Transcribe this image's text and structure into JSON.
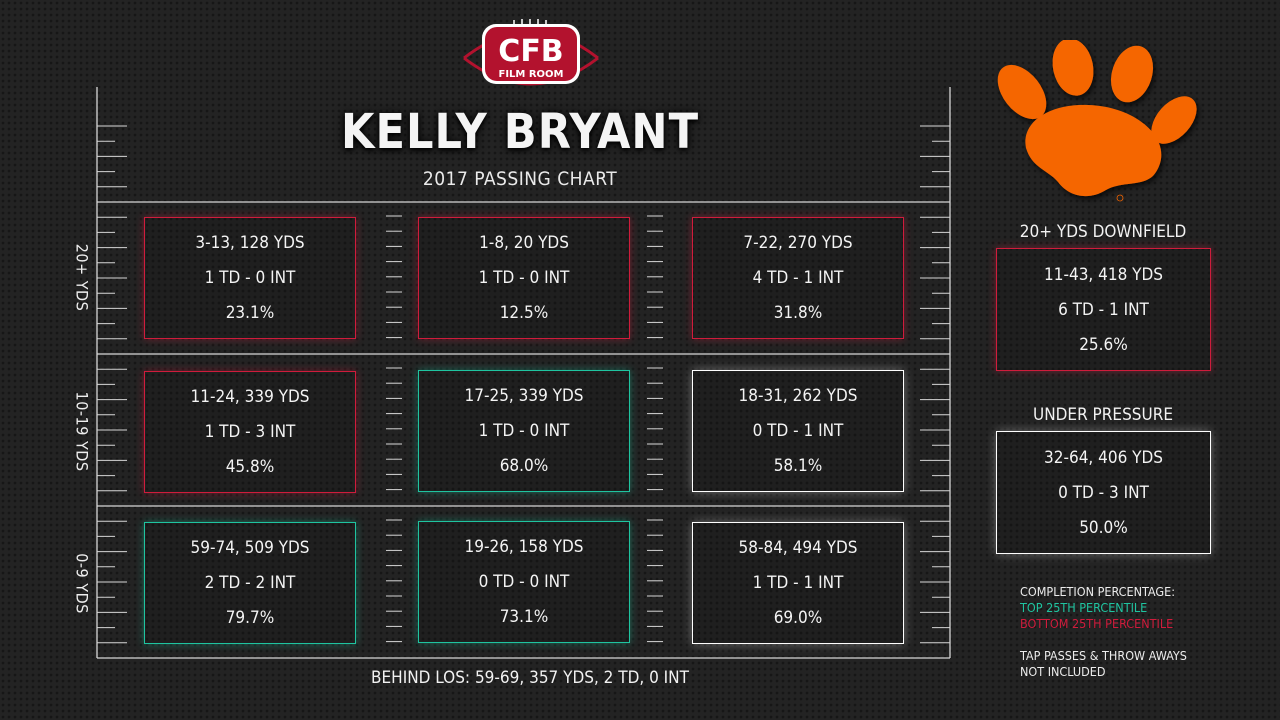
{
  "brand": {
    "logo_main": "CFB",
    "logo_sub": "FILM ROOM"
  },
  "header": {
    "title": "KELLY BRYANT",
    "subtitle": "2017 PASSING CHART"
  },
  "colors": {
    "top_25": "#1fc4a0",
    "bottom_25": "#d01c3c",
    "neutral": "#ffffff",
    "paw": "#f56600"
  },
  "chart_data": {
    "type": "table",
    "title": "KELLY BRYANT",
    "subtitle": "2017 PASSING CHART",
    "row_labels": [
      "20+ YDS",
      "10-19 YDS",
      "0-9 YDS"
    ],
    "rows": [
      {
        "label": "20+ YDS",
        "cells": [
          {
            "line1": "3-13, 128 YDS",
            "line2": "1 TD - 0 INT",
            "line3": "23.1%",
            "tier": "bottom"
          },
          {
            "line1": "1-8, 20 YDS",
            "line2": "1 TD - 0 INT",
            "line3": "12.5%",
            "tier": "bottom"
          },
          {
            "line1": "7-22, 270 YDS",
            "line2": "4 TD - 1 INT",
            "line3": "31.8%",
            "tier": "bottom"
          }
        ]
      },
      {
        "label": "10-19 YDS",
        "cells": [
          {
            "line1": "11-24, 339 YDS",
            "line2": "1 TD - 3 INT",
            "line3": "45.8%",
            "tier": "bottom"
          },
          {
            "line1": "17-25, 339 YDS",
            "line2": "1 TD - 0 INT",
            "line3": "68.0%",
            "tier": "top"
          },
          {
            "line1": "18-31, 262 YDS",
            "line2": "0 TD - 1 INT",
            "line3": "58.1%",
            "tier": "neutral"
          }
        ]
      },
      {
        "label": "0-9 YDS",
        "cells": [
          {
            "line1": "59-74, 509 YDS",
            "line2": "2 TD - 2 INT",
            "line3": "79.7%",
            "tier": "top"
          },
          {
            "line1": "19-26, 158 YDS",
            "line2": "0 TD - 0 INT",
            "line3": "73.1%",
            "tier": "top"
          },
          {
            "line1": "58-84, 494 YDS",
            "line2": "1 TD - 1 INT",
            "line3": "69.0%",
            "tier": "neutral"
          }
        ]
      }
    ],
    "behind_los": "BEHIND LOS: 59-69, 357 YDS, 2 TD, 0 INT"
  },
  "sidebar": {
    "downfield": {
      "title": "20+ YDS DOWNFIELD",
      "line1": "11-43, 418 YDS",
      "line2": "6 TD - 1 INT",
      "line3": "25.6%",
      "tier": "bottom"
    },
    "pressure": {
      "title": "UNDER PRESSURE",
      "line1": "32-64, 406 YDS",
      "line2": "0 TD - 3 INT",
      "line3": "50.0%",
      "tier": "neutral"
    },
    "legend": {
      "heading": "COMPLETION PERCENTAGE:",
      "top": "TOP 25TH PERCENTILE",
      "bottom": "BOTTOM 25TH PERCENTILE",
      "note1": "TAP PASSES & THROW AWAYS",
      "note2": "NOT INCLUDED"
    }
  }
}
